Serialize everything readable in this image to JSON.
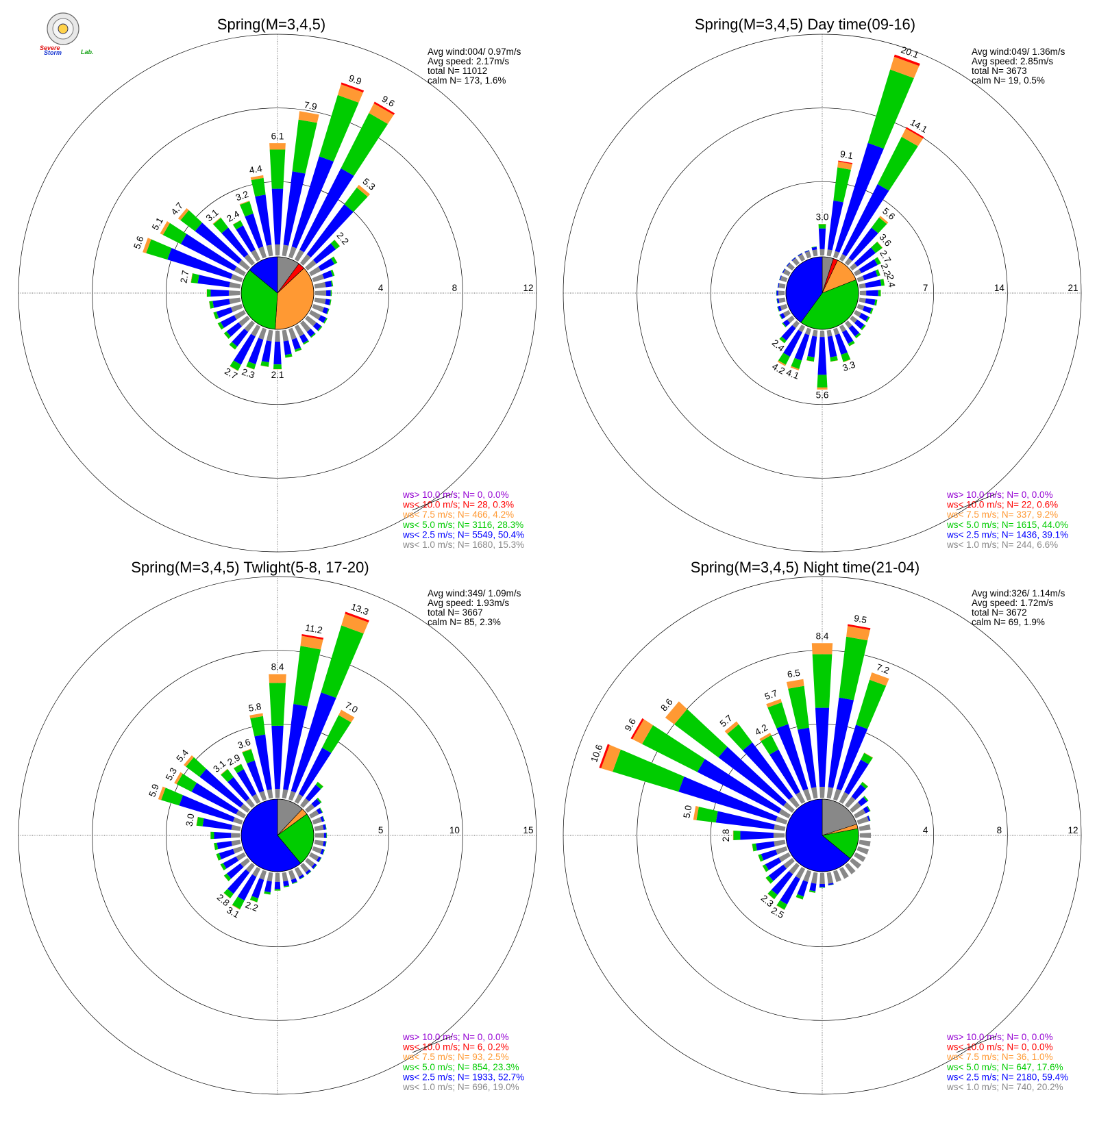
{
  "logo": {
    "text_a": "Severe",
    "text_b": "Storm",
    "text_c": "Lab."
  },
  "colors": {
    "gt10": "#9400d3",
    "lt10": "#ff0000",
    "lt75": "#ff9933",
    "lt5": "#00cc00",
    "lt25": "#0000ff",
    "lt1": "#888888"
  },
  "chart_data": [
    {
      "type": "wind_rose",
      "title": "Spring(M=3,4,5)",
      "rings": [
        4,
        8,
        12
      ],
      "rmax": 12,
      "stats": {
        "avg_wind": "Avg wind:004/ 0.97m/s",
        "avg_speed": "Avg speed: 2.17m/s",
        "total": "total N=        11012",
        "calm": "calm N=    173,   1.6%"
      },
      "legend": [
        "ws> 10.0 m/s; N=     0,  0.0%",
        "ws< 10.0 m/s; N=    28,  0.3%",
        "ws<  7.5 m/s; N=   466,  4.2%",
        "ws<  5.0 m/s; N=  3116, 28.3%",
        "ws<  2.5 m/s; N=  5549, 50.4%",
        "ws<  1.0 m/s; N=  1680, 15.3%"
      ],
      "pie": [
        0.1,
        0.03,
        0.38,
        0.35,
        0.14
      ],
      "bars": [
        {
          "dir": 0,
          "v": 6.1,
          "label": "6.1"
        },
        {
          "dir": 10,
          "v": 7.9,
          "label": "7.9"
        },
        {
          "dir": 20,
          "v": 9.9,
          "label": "9.9"
        },
        {
          "dir": 30,
          "v": 9.6,
          "label": "9.6"
        },
        {
          "dir": 40,
          "v": 5.3,
          "label": "5.3"
        },
        {
          "dir": 50,
          "v": 2.2,
          "label": "2.2"
        },
        {
          "dir": 60,
          "v": 1.6
        },
        {
          "dir": 70,
          "v": 1.2
        },
        {
          "dir": 80,
          "v": 1.0
        },
        {
          "dir": 90,
          "v": 0.9
        },
        {
          "dir": 100,
          "v": 0.9
        },
        {
          "dir": 110,
          "v": 0.9
        },
        {
          "dir": 120,
          "v": 1.0
        },
        {
          "dir": 130,
          "v": 1.0
        },
        {
          "dir": 140,
          "v": 1.0
        },
        {
          "dir": 150,
          "v": 1.1
        },
        {
          "dir": 160,
          "v": 1.3
        },
        {
          "dir": 170,
          "v": 1.5
        },
        {
          "dir": 180,
          "v": 2.1,
          "label": "2.1"
        },
        {
          "dir": 190,
          "v": 2.0
        },
        {
          "dir": 200,
          "v": 2.3,
          "label": "2.3"
        },
        {
          "dir": 210,
          "v": 2.7,
          "label": "2.7"
        },
        {
          "dir": 220,
          "v": 1.8
        },
        {
          "dir": 230,
          "v": 1.6
        },
        {
          "dir": 240,
          "v": 1.6
        },
        {
          "dir": 250,
          "v": 1.6
        },
        {
          "dir": 260,
          "v": 1.7
        },
        {
          "dir": 270,
          "v": 1.8
        },
        {
          "dir": 280,
          "v": 2.7,
          "label": "2.7"
        },
        {
          "dir": 290,
          "v": 5.6,
          "label": "5.6"
        },
        {
          "dir": 300,
          "v": 5.1,
          "label": "5.1"
        },
        {
          "dir": 310,
          "v": 4.7,
          "label": "4.7"
        },
        {
          "dir": 320,
          "v": 3.1,
          "label": "3.1"
        },
        {
          "dir": 330,
          "v": 2.4,
          "label": "2.4"
        },
        {
          "dir": 340,
          "v": 3.2,
          "label": "3.2"
        },
        {
          "dir": 350,
          "v": 4.4,
          "label": "4.4"
        }
      ]
    },
    {
      "type": "wind_rose",
      "title": "Spring(M=3,4,5) Day time(09-16)",
      "rings": [
        7,
        14,
        21
      ],
      "rmax": 21,
      "stats": {
        "avg_wind": "Avg wind:049/ 1.36m/s",
        "avg_speed": "Avg speed: 2.85m/s",
        "total": "total N=        3673",
        "calm": "calm N=     19,   0.5%"
      },
      "legend": [
        "ws> 10.0 m/s; N=     0,  0.0%",
        "ws< 10.0 m/s; N=    22,  0.6%",
        "ws<  7.5 m/s; N=   337,  9.2%",
        "ws<  5.0 m/s; N=  1615, 44.0%",
        "ws<  2.5 m/s; N=  1436, 39.1%",
        "ws<  1.0 m/s; N=   244,  6.6%"
      ],
      "pie": [
        0.05,
        0.02,
        0.12,
        0.41,
        0.4
      ],
      "bars": [
        {
          "dir": 0,
          "v": 3.0,
          "label": "3.0"
        },
        {
          "dir": 10,
          "v": 9.1,
          "label": "9.1"
        },
        {
          "dir": 20,
          "v": 20.1,
          "label": "20.1"
        },
        {
          "dir": 30,
          "v": 14.1,
          "label": "14.1"
        },
        {
          "dir": 40,
          "v": 5.6,
          "label": "5.6"
        },
        {
          "dir": 50,
          "v": 3.6,
          "label": "3.6"
        },
        {
          "dir": 60,
          "v": 2.7,
          "label": "2.7"
        },
        {
          "dir": 70,
          "v": 2.2,
          "label": "2.2"
        },
        {
          "dir": 80,
          "v": 2.4,
          "label": "2.4"
        },
        {
          "dir": 90,
          "v": 2.0
        },
        {
          "dir": 100,
          "v": 1.7
        },
        {
          "dir": 110,
          "v": 1.5
        },
        {
          "dir": 120,
          "v": 1.5
        },
        {
          "dir": 130,
          "v": 1.6
        },
        {
          "dir": 140,
          "v": 1.8
        },
        {
          "dir": 150,
          "v": 2.1
        },
        {
          "dir": 160,
          "v": 3.3,
          "label": "3.3"
        },
        {
          "dir": 170,
          "v": 3.0
        },
        {
          "dir": 180,
          "v": 5.6,
          "label": "5.6"
        },
        {
          "dir": 190,
          "v": 3.0
        },
        {
          "dir": 200,
          "v": 4.1,
          "label": "4.1"
        },
        {
          "dir": 210,
          "v": 4.2,
          "label": "4.2"
        },
        {
          "dir": 220,
          "v": 2.4,
          "label": "2.4"
        },
        {
          "dir": 230,
          "v": 1.2
        },
        {
          "dir": 240,
          "v": 1.0
        },
        {
          "dir": 250,
          "v": 0.9
        },
        {
          "dir": 260,
          "v": 0.8
        },
        {
          "dir": 270,
          "v": 0.8
        },
        {
          "dir": 280,
          "v": 0.7
        },
        {
          "dir": 290,
          "v": 0.7
        },
        {
          "dir": 300,
          "v": 0.7
        },
        {
          "dir": 310,
          "v": 0.7
        },
        {
          "dir": 320,
          "v": 0.7
        },
        {
          "dir": 330,
          "v": 0.7
        },
        {
          "dir": 340,
          "v": 0.7
        },
        {
          "dir": 350,
          "v": 0.9
        }
      ]
    },
    {
      "type": "wind_rose",
      "title": "Spring(M=3,4,5) Twlight(5-8, 17-20)",
      "rings": [
        5,
        10,
        15
      ],
      "rmax": 15,
      "stats": {
        "avg_wind": "Avg wind:349/ 1.09m/s",
        "avg_speed": "Avg speed: 1.93m/s",
        "total": "total N=        3667",
        "calm": "calm N=     85,   2.3%"
      },
      "legend": [
        "ws> 10.0 m/s; N=     0,  0.0%",
        "ws< 10.0 m/s; N=     6,  0.2%",
        "ws<  7.5 m/s; N=    93,  2.5%",
        "ws<  5.0 m/s; N=   854, 23.3%",
        "ws<  2.5 m/s; N=  1933, 52.7%",
        "ws<  1.0 m/s; N=   696, 19.0%"
      ],
      "pie": [
        0.12,
        0.03,
        0.24,
        0.61
      ],
      "bars": [
        {
          "dir": 0,
          "v": 8.4,
          "label": "8.4"
        },
        {
          "dir": 10,
          "v": 11.2,
          "label": "11.2"
        },
        {
          "dir": 20,
          "v": 13.3,
          "label": "13.3"
        },
        {
          "dir": 30,
          "v": 7.0,
          "label": "7.0"
        },
        {
          "dir": 40,
          "v": 2.0
        },
        {
          "dir": 50,
          "v": 1.2
        },
        {
          "dir": 60,
          "v": 0.9
        },
        {
          "dir": 70,
          "v": 0.8
        },
        {
          "dir": 80,
          "v": 0.8
        },
        {
          "dir": 90,
          "v": 0.8
        },
        {
          "dir": 100,
          "v": 0.8
        },
        {
          "dir": 110,
          "v": 0.8
        },
        {
          "dir": 120,
          "v": 0.8
        },
        {
          "dir": 130,
          "v": 0.8
        },
        {
          "dir": 140,
          "v": 0.8
        },
        {
          "dir": 150,
          "v": 0.8
        },
        {
          "dir": 160,
          "v": 0.9
        },
        {
          "dir": 170,
          "v": 1.0
        },
        {
          "dir": 180,
          "v": 1.2
        },
        {
          "dir": 190,
          "v": 1.5
        },
        {
          "dir": 200,
          "v": 2.2,
          "label": "2.2"
        },
        {
          "dir": 210,
          "v": 3.1,
          "label": "3.1"
        },
        {
          "dir": 220,
          "v": 2.8,
          "label": "2.8"
        },
        {
          "dir": 230,
          "v": 2.0
        },
        {
          "dir": 240,
          "v": 1.8
        },
        {
          "dir": 250,
          "v": 1.8
        },
        {
          "dir": 260,
          "v": 1.8
        },
        {
          "dir": 270,
          "v": 2.0
        },
        {
          "dir": 280,
          "v": 3.0,
          "label": "3.0"
        },
        {
          "dir": 290,
          "v": 5.9,
          "label": "5.9"
        },
        {
          "dir": 300,
          "v": 5.3,
          "label": "5.3"
        },
        {
          "dir": 310,
          "v": 5.4,
          "label": "5.4"
        },
        {
          "dir": 320,
          "v": 3.1,
          "label": "3.1"
        },
        {
          "dir": 330,
          "v": 2.9,
          "label": "2.9"
        },
        {
          "dir": 340,
          "v": 3.6,
          "label": "3.6"
        },
        {
          "dir": 350,
          "v": 5.8,
          "label": "5.8"
        }
      ]
    },
    {
      "type": "wind_rose",
      "title": "Spring(M=3,4,5) Night time(21-04)",
      "rings": [
        4,
        8,
        12
      ],
      "rmax": 12,
      "stats": {
        "avg_wind": "Avg wind:326/ 1.14m/s",
        "avg_speed": "Avg speed: 1.72m/s",
        "total": "total N=        3672",
        "calm": "calm N=     69,   1.9%"
      },
      "legend": [
        "ws> 10.0 m/s; N=     0,  0.0%",
        "ws< 10.0 m/s; N=     0,  0.0%",
        "ws<  7.5 m/s; N=    36,  1.0%",
        "ws<  5.0 m/s; N=   647, 17.6%",
        "ws<  2.5 m/s; N=  2180, 59.4%",
        "ws<  1.0 m/s; N=   740, 20.2%"
      ],
      "pie": [
        0.2,
        0.02,
        0.14,
        0.64
      ],
      "bars": [
        {
          "dir": 0,
          "v": 8.4,
          "label": "8.4"
        },
        {
          "dir": 10,
          "v": 9.5,
          "label": "9.5"
        },
        {
          "dir": 20,
          "v": 7.2,
          "label": "7.2"
        },
        {
          "dir": 30,
          "v": 3.0
        },
        {
          "dir": 40,
          "v": 1.6
        },
        {
          "dir": 50,
          "v": 1.1
        },
        {
          "dir": 60,
          "v": 0.9
        },
        {
          "dir": 70,
          "v": 0.7
        },
        {
          "dir": 80,
          "v": 0.6
        },
        {
          "dir": 90,
          "v": 0.6
        },
        {
          "dir": 100,
          "v": 0.6
        },
        {
          "dir": 110,
          "v": 0.6
        },
        {
          "dir": 120,
          "v": 0.6
        },
        {
          "dir": 130,
          "v": 0.6
        },
        {
          "dir": 140,
          "v": 0.6
        },
        {
          "dir": 150,
          "v": 0.6
        },
        {
          "dir": 160,
          "v": 0.6
        },
        {
          "dir": 170,
          "v": 0.7
        },
        {
          "dir": 180,
          "v": 0.8
        },
        {
          "dir": 190,
          "v": 1.1
        },
        {
          "dir": 200,
          "v": 1.6
        },
        {
          "dir": 210,
          "v": 2.5,
          "label": "2.5"
        },
        {
          "dir": 220,
          "v": 2.3,
          "label": "2.3"
        },
        {
          "dir": 230,
          "v": 1.8
        },
        {
          "dir": 240,
          "v": 1.6
        },
        {
          "dir": 250,
          "v": 1.6
        },
        {
          "dir": 260,
          "v": 1.8
        },
        {
          "dir": 270,
          "v": 2.8,
          "label": "2.8"
        },
        {
          "dir": 280,
          "v": 5.0,
          "label": "5.0"
        },
        {
          "dir": 290,
          "v": 10.6,
          "label": "10.6"
        },
        {
          "dir": 300,
          "v": 9.6,
          "label": "9.6"
        },
        {
          "dir": 310,
          "v": 8.6,
          "label": "8.6"
        },
        {
          "dir": 320,
          "v": 5.7,
          "label": "5.7"
        },
        {
          "dir": 330,
          "v": 4.2,
          "label": "4.2"
        },
        {
          "dir": 340,
          "v": 5.7,
          "label": "5.7"
        },
        {
          "dir": 350,
          "v": 6.5,
          "label": "6.5"
        }
      ]
    }
  ]
}
